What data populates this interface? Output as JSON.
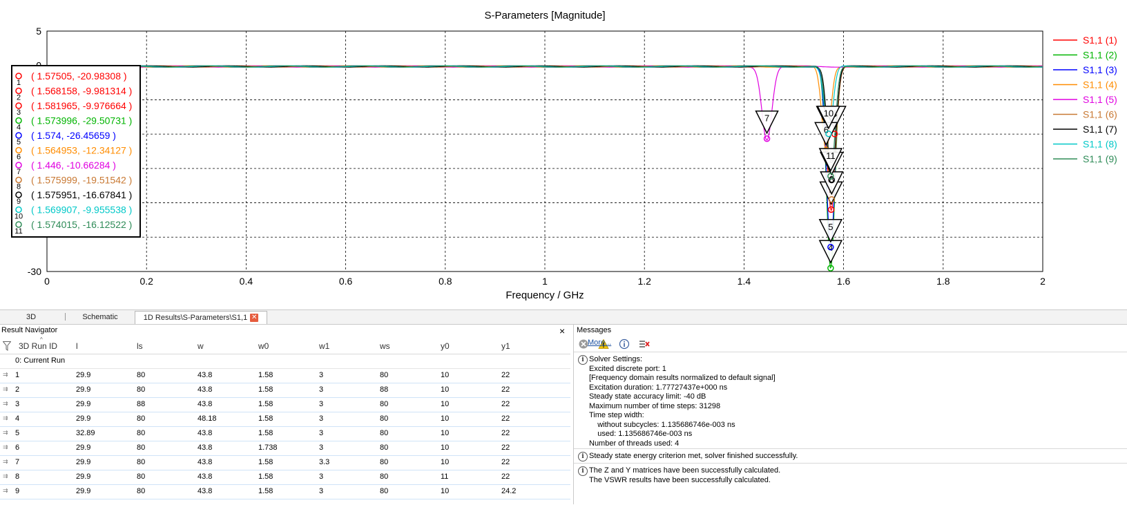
{
  "chart_data": {
    "type": "line",
    "title": "S-Parameters [Magnitude]",
    "xlabel": "Frequency / GHz",
    "ylabel": "",
    "xlim": [
      0,
      2
    ],
    "ylim": [
      -30,
      5
    ],
    "x_ticks": [
      "0",
      "0.2",
      "0.4",
      "0.6",
      "0.8",
      "1",
      "1.2",
      "1.4",
      "1.6",
      "1.8",
      "2"
    ],
    "y_ticks": [
      "5",
      "0",
      "-30"
    ],
    "grid": true,
    "legend_position": "right",
    "series": [
      {
        "name": "S1,1 (1)",
        "color": "#ff0000",
        "dip_freq": 1.57505,
        "dip_db": -20.98308,
        "dip_width": 0.012
      },
      {
        "name": "S1,1 (2)",
        "color": "#00b400",
        "dip_freq": 1.573996,
        "dip_db": -29.50731,
        "dip_width": 0.012
      },
      {
        "name": "S1,1 (3)",
        "color": "#0000ff",
        "dip_freq": 1.574,
        "dip_db": -26.45659,
        "dip_width": 0.012
      },
      {
        "name": "S1,1 (4)",
        "color": "#ff8c00",
        "dip_freq": 1.564953,
        "dip_db": -12.34127,
        "dip_width": 0.012
      },
      {
        "name": "S1,1 (5)",
        "color": "#e000e0",
        "dip_freq": 1.446,
        "dip_db": -10.66284,
        "dip_width": 0.014
      },
      {
        "name": "S1,1 (6)",
        "color": "#c87832",
        "dip_freq": 1.575999,
        "dip_db": -19.51542,
        "dip_width": 0.012
      },
      {
        "name": "S1,1 (7)",
        "color": "#000000",
        "dip_freq": 1.575951,
        "dip_db": -16.67841,
        "dip_width": 0.012
      },
      {
        "name": "S1,1 (8)",
        "color": "#00c8c8",
        "dip_freq": 1.569907,
        "dip_db": -9.955538,
        "dip_width": 0.012
      },
      {
        "name": "S1,1 (9)",
        "color": "#2e8b57",
        "dip_freq": 1.574015,
        "dip_db": -16.12522,
        "dip_width": 0.012
      }
    ],
    "markers": [
      {
        "id": "1",
        "x": 1.57505,
        "y": -20.98308,
        "text": "( 1.57505, -20.98308 )",
        "color": "#ff0000"
      },
      {
        "id": "2",
        "x": 1.568158,
        "y": -9.981314,
        "text": "( 1.568158, -9.981314 )",
        "color": "#ff0000"
      },
      {
        "id": "3",
        "x": 1.581965,
        "y": -9.976664,
        "text": "( 1.581965, -9.976664 )",
        "color": "#ff0000"
      },
      {
        "id": "4",
        "x": 1.573996,
        "y": -29.50731,
        "text": "( 1.573996, -29.50731 )",
        "color": "#00b400"
      },
      {
        "id": "5",
        "x": 1.574,
        "y": -26.45659,
        "text": "( 1.574, -26.45659 )",
        "color": "#0000ff"
      },
      {
        "id": "6",
        "x": 1.564953,
        "y": -12.34127,
        "text": "( 1.564953, -12.34127 )",
        "color": "#ff8c00"
      },
      {
        "id": "7",
        "x": 1.446,
        "y": -10.66284,
        "text": "( 1.446, -10.66284 )",
        "color": "#e000e0"
      },
      {
        "id": "8",
        "x": 1.575999,
        "y": -19.51542,
        "text": "( 1.575999, -19.51542 )",
        "color": "#c87832"
      },
      {
        "id": "9",
        "x": 1.575951,
        "y": -16.67841,
        "text": "( 1.575951, -16.67841 )",
        "color": "#000000"
      },
      {
        "id": "10",
        "x": 1.569907,
        "y": -9.955538,
        "text": "( 1.569907, -9.955538 )",
        "color": "#00c8c8"
      },
      {
        "id": "11",
        "x": 1.574015,
        "y": -16.12522,
        "text": "( 1.574015, -16.12522 )",
        "color": "#2e8b57"
      }
    ]
  },
  "tabs": [
    {
      "label": "3D"
    },
    {
      "label": "Schematic"
    },
    {
      "label": "1D Results\\S-Parameters\\S1,1",
      "active": true
    }
  ],
  "result_navigator": {
    "title": "Result Navigator",
    "close_label": "×",
    "columns": [
      "3D Run ID",
      "l",
      "ls",
      "w",
      "w0",
      "w1",
      "ws",
      "y0",
      "y1"
    ],
    "current_run": "0: Current Run",
    "rows": [
      [
        "1",
        "29.9",
        "80",
        "43.8",
        "1.58",
        "3",
        "80",
        "10",
        "22"
      ],
      [
        "2",
        "29.9",
        "80",
        "43.8",
        "1.58",
        "3",
        "88",
        "10",
        "22"
      ],
      [
        "3",
        "29.9",
        "88",
        "43.8",
        "1.58",
        "3",
        "80",
        "10",
        "22"
      ],
      [
        "4",
        "29.9",
        "80",
        "48.18",
        "1.58",
        "3",
        "80",
        "10",
        "22"
      ],
      [
        "5",
        "32.89",
        "80",
        "43.8",
        "1.58",
        "3",
        "80",
        "10",
        "22"
      ],
      [
        "6",
        "29.9",
        "80",
        "43.8",
        "1.738",
        "3",
        "80",
        "10",
        "22"
      ],
      [
        "7",
        "29.9",
        "80",
        "43.8",
        "1.58",
        "3.3",
        "80",
        "10",
        "22"
      ],
      [
        "8",
        "29.9",
        "80",
        "43.8",
        "1.58",
        "3",
        "80",
        "11",
        "22"
      ],
      [
        "9",
        "29.9",
        "80",
        "43.8",
        "1.58",
        "3",
        "80",
        "10",
        "24.2"
      ]
    ]
  },
  "messages": {
    "title": "Messages",
    "more_link": "More...",
    "solver_settings": [
      "Solver Settings:",
      "Excited discrete port: 1",
      "[Frequency domain results normalized to default signal]",
      "Excitation duration: 1.77727437e+000 ns",
      "Steady state accuracy limit: -40 dB",
      "Maximum number of time steps: 31298",
      "Time step width:",
      "    without subcycles: 1.135686746e-003 ns",
      "    used: 1.135686746e-003 ns",
      "Number of threads used: 4"
    ],
    "steady_state": "Steady state energy criterion met, solver finished successfully.",
    "matrices": [
      "The Z and Y matrices have been successfully calculated.",
      "The VSWR results have been successfully calculated."
    ]
  }
}
